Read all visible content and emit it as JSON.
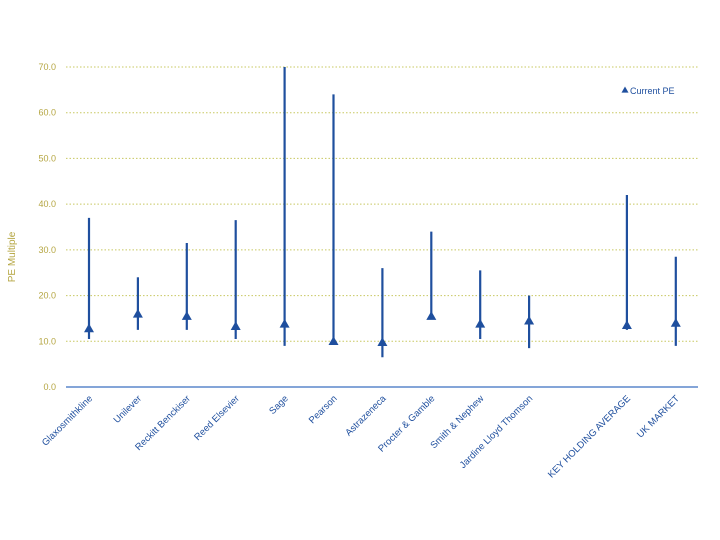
{
  "chart_data": {
    "type": "range-marker",
    "title": "",
    "ylabel": "PE Multiple",
    "ylim": [
      0,
      70
    ],
    "yticks": [
      "0.0",
      "10.0",
      "20.0",
      "30.0",
      "40.0",
      "50.0",
      "60.0",
      "70.0"
    ],
    "grid": true,
    "legend": {
      "position": "top-right",
      "label": "Current PE"
    },
    "colors": {
      "series": "#1f4f9e",
      "grid": "#c8c860",
      "tick": "#b5a642",
      "axis": "#3a6fc0"
    },
    "categories": [
      "Glaxosmithkline",
      "Unilever",
      "Reckitt Benckiser",
      "Reed Elsevier",
      "Sage",
      "Pearson",
      "Astrazeneca",
      "Procter & Gamble",
      "Smith & Nephew",
      "Jardine Lloyd Thomson",
      "",
      "KEY HOLDING AVERAGE",
      "UK MARKET"
    ],
    "high": [
      37.0,
      24.0,
      31.5,
      36.5,
      70.0,
      64.0,
      26.0,
      34.0,
      25.5,
      20.0,
      null,
      42.0,
      28.5
    ],
    "low": [
      10.5,
      12.5,
      12.5,
      10.5,
      9.0,
      10.0,
      6.5,
      15.5,
      10.5,
      8.5,
      null,
      12.5,
      9.0
    ],
    "current": [
      12.8,
      16.0,
      15.5,
      13.3,
      13.8,
      10.0,
      9.8,
      15.5,
      13.8,
      14.5,
      null,
      13.5,
      14.0
    ]
  }
}
